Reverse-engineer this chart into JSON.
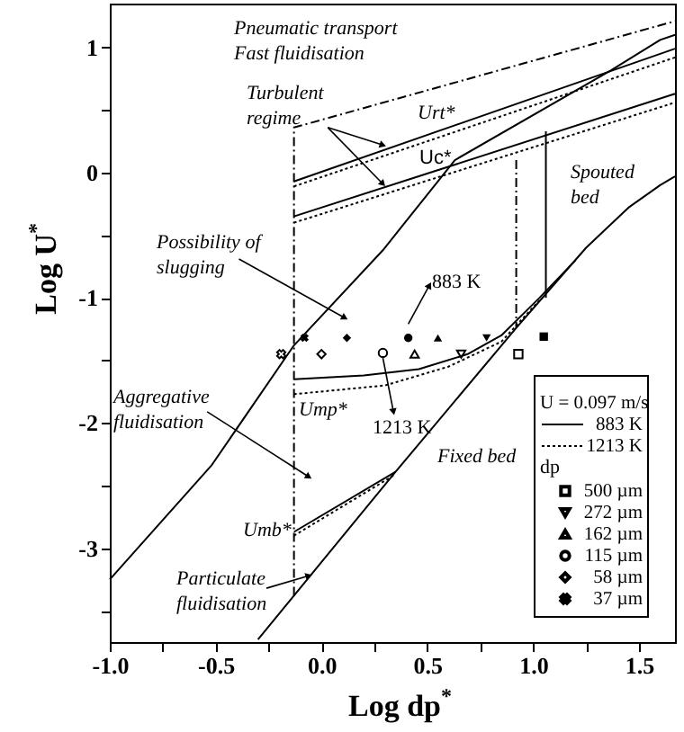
{
  "chart_data": {
    "type": "line",
    "xlabel": "Log dp$^{*}$",
    "ylabel": "Log U$^{*}$",
    "legend_title": "U = 0.097 m/s",
    "legend": "bottom right",
    "grid": false,
    "xlim": [
      -1.0,
      1.67
    ],
    "ylim": [
      -3.75,
      1.35
    ],
    "xticks": [
      {
        "value": -1.0,
        "label": "-1.0"
      },
      {
        "value": -0.75,
        "label": null
      },
      {
        "value": -0.5,
        "label": "-0.5"
      },
      {
        "value": -0.25,
        "label": null
      },
      {
        "value": 0.0,
        "label": "0.0"
      },
      {
        "value": 0.25,
        "label": null
      },
      {
        "value": 0.5,
        "label": "0.5"
      },
      {
        "value": 0.75,
        "label": null
      },
      {
        "value": 1.0,
        "label": "1.0"
      },
      {
        "value": 1.25,
        "label": null
      },
      {
        "value": 1.5,
        "label": "1.5"
      }
    ],
    "yticks": [
      1,
      {
        "value": 0.5,
        "label": null
      },
      0,
      {
        "value": -0.5,
        "label": null
      },
      -1,
      {
        "value": -1.5,
        "label": null
      },
      -2,
      {
        "value": -2.5,
        "label": null
      },
      -3,
      {
        "value": -3.5,
        "label": null
      }
    ],
    "series": [
      {
        "color": "#000000",
        "line_style": "dashed",
        "x": [
          -0.13,
          -0.13,
          1.67
        ],
        "values": [
          -3.38,
          0.36,
          1.21
        ]
      },
      {
        "name": "883 K",
        "color": "#000000",
        "line_style": "solid",
        "x": [
          -0.13,
          1.67
        ],
        "values": [
          -0.07,
          0.99
        ]
      },
      {
        "name": "1213 K",
        "color": "#000000",
        "line_style": "dotted",
        "x": [
          -0.13,
          1.67
        ],
        "values": [
          -0.11,
          0.92
        ]
      },
      {
        "color": "#000000",
        "line_style": "solid",
        "x": [
          -0.13,
          1.67
        ],
        "values": [
          -0.35,
          0.63
        ]
      },
      {
        "color": "#000000",
        "line_style": "dotted",
        "x": [
          -0.13,
          1.67
        ],
        "values": [
          -0.4,
          0.56
        ]
      },
      {
        "color": "#000000",
        "line_style": "solid",
        "x": [
          -1.0,
          -0.52,
          -0.13,
          0.29,
          0.63,
          1.37,
          1.6,
          1.67
        ],
        "values": [
          -3.25,
          -2.34,
          -1.38,
          -0.62,
          0.1,
          0.82,
          1.06,
          1.1
        ]
      },
      {
        "color": "#000000",
        "line_style": "solid",
        "x": [
          -0.3,
          0.35,
          0.92,
          1.25,
          1.45,
          1.6,
          1.67
        ],
        "values": [
          -3.73,
          -2.39,
          -1.24,
          -0.6,
          -0.28,
          -0.1,
          -0.03
        ]
      },
      {
        "color": "#000000",
        "line_style": "solid",
        "x": [
          -0.13,
          0.2,
          0.46,
          0.69,
          0.85,
          1.03,
          1.2
        ],
        "values": [
          -1.65,
          -1.62,
          -1.57,
          -1.45,
          -1.3,
          -1.0,
          -0.7
        ]
      },
      {
        "color": "#000000",
        "line_style": "dotted",
        "x": [
          -0.13,
          0.3,
          0.6,
          0.85,
          1.03
        ],
        "values": [
          -1.77,
          -1.7,
          -1.55,
          -1.35,
          -1.02
        ]
      },
      {
        "color": "#000000",
        "line_style": "solid",
        "x": [
          -0.13,
          0.35
        ],
        "values": [
          -2.87,
          -2.39
        ]
      },
      {
        "color": "#000000",
        "line_style": "dotted",
        "x": [
          -0.13,
          0.35
        ],
        "values": [
          -2.9,
          -2.41
        ]
      },
      {
        "color": "#000000",
        "line_style": "dashed",
        "x": [
          0.92,
          0.92
        ],
        "values": [
          0.1,
          -1.24
        ]
      },
      {
        "color": "#000000",
        "line_style": "solid",
        "x": [
          1.06,
          1.06
        ],
        "values": [
          0.33,
          -1.0
        ]
      },
      {
        "type": "scatter",
        "name": "500 µm",
        "color": "#000000",
        "marker": "square",
        "x": [
          0.93
        ],
        "values": [
          -1.45
        ]
      },
      {
        "type": "scatter",
        "name": "272 µm",
        "color": "#000000",
        "marker": "triangle-down",
        "x": [
          0.66
        ],
        "values": [
          -1.45
        ]
      },
      {
        "type": "scatter",
        "name": "162 µm",
        "color": "#000000",
        "marker": "triangle",
        "x": [
          0.44
        ],
        "values": [
          -1.45
        ]
      },
      {
        "type": "scatter",
        "name": "115 µm",
        "color": "#000000",
        "marker": "circle",
        "x": [
          0.29
        ],
        "values": [
          -1.44
        ]
      },
      {
        "type": "scatter",
        "name": "58 µm",
        "color": "#000000",
        "marker": "diamond",
        "x": [
          0.0
        ],
        "values": [
          -1.45
        ]
      },
      {
        "type": "scatter",
        "name": "37 µm",
        "color": "#000000",
        "marker": "cross",
        "x": [
          -0.19
        ],
        "values": [
          -1.45
        ]
      },
      {
        "type": "scatter",
        "color": "#000000",
        "marker": "square",
        "x": [
          1.05
        ],
        "values": [
          -1.31
        ]
      },
      {
        "type": "scatter",
        "color": "#000000",
        "marker": "triangle-down",
        "x": [
          0.78
        ],
        "values": [
          -1.32
        ]
      },
      {
        "type": "scatter",
        "color": "#000000",
        "marker": "triangle",
        "x": [
          0.55
        ],
        "values": [
          -1.32
        ]
      },
      {
        "type": "scatter",
        "color": "#000000",
        "marker": "circle",
        "x": [
          0.41
        ],
        "values": [
          -1.32
        ]
      },
      {
        "type": "scatter",
        "color": "#000000",
        "marker": "diamond",
        "x": [
          0.12
        ],
        "values": [
          -1.32
        ]
      },
      {
        "type": "scatter",
        "color": "#000000",
        "marker": "cross",
        "x": [
          -0.08
        ],
        "values": [
          -1.32
        ]
      }
    ],
    "annotations": [
      "Pneumatic transport\nFast fluidisation",
      {
        "text": "Turbulent\nregime",
        "x": 0.29,
        "y": 0.22
      },
      "Spouted\nbed",
      "Possibility of\nslugging",
      "Aggregative\nfluidisation",
      "Fixed bed",
      {
        "text": "Particulate\nfluidisation",
        "x": -0.06,
        "y": -3.22
      },
      "dp",
      "Urt*",
      "Uc*",
      "883 K",
      "1213 K",
      "Ump*",
      "Umb*"
    ]
  }
}
